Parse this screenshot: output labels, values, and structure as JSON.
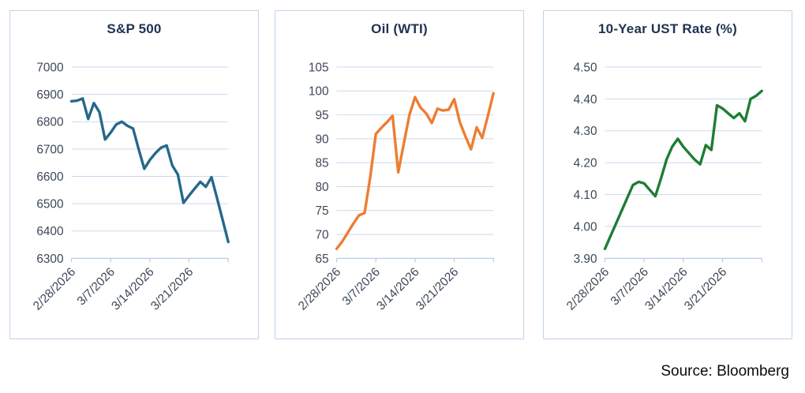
{
  "page": {
    "background": "#ffffff",
    "source_note": "Source: Bloomberg"
  },
  "styles": {
    "grid_color": "#c9d9ec",
    "axis_color": "#b9cde4",
    "tick_label_color": "#3d4859",
    "title_color": "#1f3250",
    "panel_border_color": "#bfd3e6"
  },
  "chart_data": [
    {
      "type": "line",
      "title": "S&P 500",
      "line_color": "#26688a",
      "xlabel": "",
      "ylabel": "",
      "grid": true,
      "legend": "none",
      "ylim": [
        6300,
        7000
      ],
      "ytick_step": 100,
      "y_decimals": 0,
      "x_tick_labels": [
        "2/28/2026",
        "3/7/2026",
        "3/14/2026",
        "3/21/2026"
      ],
      "x_tick_indices": [
        0,
        7,
        14,
        21
      ],
      "x": [
        "2/28/2026",
        "3/1/2026",
        "3/2/2026",
        "3/3/2026",
        "3/4/2026",
        "3/5/2026",
        "3/6/2026",
        "3/7/2026",
        "3/8/2026",
        "3/9/2026",
        "3/10/2026",
        "3/11/2026",
        "3/12/2026",
        "3/13/2026",
        "3/14/2026",
        "3/15/2026",
        "3/16/2026",
        "3/17/2026",
        "3/18/2026",
        "3/19/2026",
        "3/20/2026",
        "3/21/2026",
        "3/22/2026",
        "3/23/2026",
        "3/24/2026",
        "3/25/2026",
        "3/26/2026",
        "3/27/2026",
        "3/28/2026"
      ],
      "values": [
        6875,
        6877,
        6885,
        6810,
        6868,
        6835,
        6735,
        6760,
        6790,
        6800,
        6785,
        6775,
        6700,
        6628,
        6660,
        6685,
        6705,
        6713,
        6640,
        6607,
        6503,
        6530,
        6555,
        6580,
        6562,
        6597,
        6520,
        6440,
        6360
      ]
    },
    {
      "type": "line",
      "title": "Oil (WTI)",
      "line_color": "#ed7d31",
      "xlabel": "",
      "ylabel": "",
      "grid": true,
      "legend": "none",
      "ylim": [
        65,
        105
      ],
      "ytick_step": 5,
      "y_decimals": 0,
      "x_tick_labels": [
        "2/28/2026",
        "3/7/2026",
        "3/14/2026",
        "3/21/2026"
      ],
      "x_tick_indices": [
        0,
        7,
        14,
        21
      ],
      "x": [
        "2/28/2026",
        "3/1/2026",
        "3/2/2026",
        "3/3/2026",
        "3/4/2026",
        "3/5/2026",
        "3/6/2026",
        "3/7/2026",
        "3/8/2026",
        "3/9/2026",
        "3/10/2026",
        "3/11/2026",
        "3/12/2026",
        "3/13/2026",
        "3/14/2026",
        "3/15/2026",
        "3/16/2026",
        "3/17/2026",
        "3/18/2026",
        "3/19/2026",
        "3/20/2026",
        "3/21/2026",
        "3/22/2026",
        "3/23/2026",
        "3/24/2026",
        "3/25/2026",
        "3/26/2026",
        "3/27/2026",
        "3/28/2026"
      ],
      "values": [
        67,
        68.5,
        70.4,
        72.3,
        74,
        74.5,
        82,
        91,
        92.3,
        93.5,
        94.8,
        83,
        89,
        95,
        98.7,
        96.5,
        95.3,
        93.3,
        96.3,
        95.9,
        96.1,
        98.3,
        93.5,
        90.5,
        87.8,
        92.4,
        90.2,
        94.8,
        99.5
      ]
    },
    {
      "type": "line",
      "title": "10-Year UST Rate (%)",
      "line_color": "#1e7d34",
      "xlabel": "",
      "ylabel": "",
      "grid": true,
      "legend": "none",
      "ylim": [
        3.9,
        4.5
      ],
      "ytick_step": 0.1,
      "y_decimals": 2,
      "x_tick_labels": [
        "2/28/2026",
        "3/7/2026",
        "3/14/2026",
        "3/21/2026"
      ],
      "x_tick_indices": [
        0,
        7,
        14,
        21
      ],
      "x": [
        "2/28/2026",
        "3/1/2026",
        "3/2/2026",
        "3/3/2026",
        "3/4/2026",
        "3/5/2026",
        "3/6/2026",
        "3/7/2026",
        "3/8/2026",
        "3/9/2026",
        "3/10/2026",
        "3/11/2026",
        "3/12/2026",
        "3/13/2026",
        "3/14/2026",
        "3/15/2026",
        "3/16/2026",
        "3/17/2026",
        "3/18/2026",
        "3/19/2026",
        "3/20/2026",
        "3/21/2026",
        "3/22/2026",
        "3/23/2026",
        "3/24/2026",
        "3/25/2026",
        "3/26/2026",
        "3/27/2026",
        "3/28/2026"
      ],
      "values": [
        3.93,
        3.97,
        4.01,
        4.05,
        4.09,
        4.13,
        4.14,
        4.135,
        4.115,
        4.095,
        4.15,
        4.21,
        4.25,
        4.275,
        4.25,
        4.23,
        4.21,
        4.195,
        4.255,
        4.24,
        4.38,
        4.37,
        4.355,
        4.34,
        4.355,
        4.33,
        4.4,
        4.41,
        4.425
      ]
    }
  ]
}
